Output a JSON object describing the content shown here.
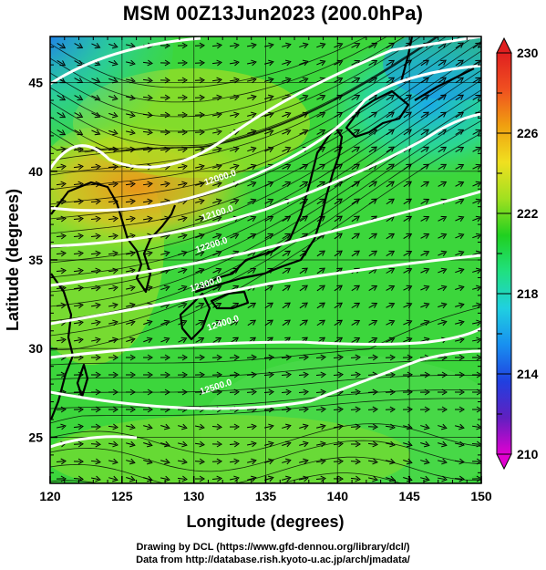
{
  "title": "MSM 00Z13Jun2023 (200.0hPa)",
  "x_axis": {
    "label": "Longitude (degrees)",
    "ticks": [
      "120",
      "125",
      "130",
      "135",
      "140",
      "145",
      "150"
    ],
    "range": [
      120,
      150
    ]
  },
  "y_axis": {
    "label": "Latitude  (degrees)",
    "ticks": [
      "25",
      "30",
      "35",
      "40",
      "45"
    ],
    "range": [
      22.4,
      47.6
    ]
  },
  "colorbar": {
    "ticks": [
      "230",
      "226",
      "222",
      "218",
      "214",
      "210"
    ],
    "range": [
      210,
      230
    ],
    "colors": [
      "#e000d0",
      "#6020c0",
      "#2040e0",
      "#1890f0",
      "#20d0e0",
      "#20e080",
      "#20d020",
      "#a0e020",
      "#f0e020",
      "#f0a010",
      "#f05020",
      "#e02020"
    ]
  },
  "contour_labels": [
    {
      "text": "12000.0",
      "lon": 130.8,
      "lat": 39.2
    },
    {
      "text": "12100.0",
      "lon": 130.6,
      "lat": 37.2
    },
    {
      "text": "12200.0",
      "lon": 130.2,
      "lat": 35.4
    },
    {
      "text": "12300.0",
      "lon": 129.8,
      "lat": 33.2
    },
    {
      "text": "12400.0",
      "lon": 131.0,
      "lat": 31.0
    },
    {
      "text": "12500.0",
      "lon": 130.5,
      "lat": 27.4
    }
  ],
  "footer": {
    "line1": "Drawing by DCL (https://www.gfd-dennou.org/library/dcl/)",
    "line2": "Data from http://database.rish.kyoto-u.ac.jp/arch/jmadata/"
  }
}
